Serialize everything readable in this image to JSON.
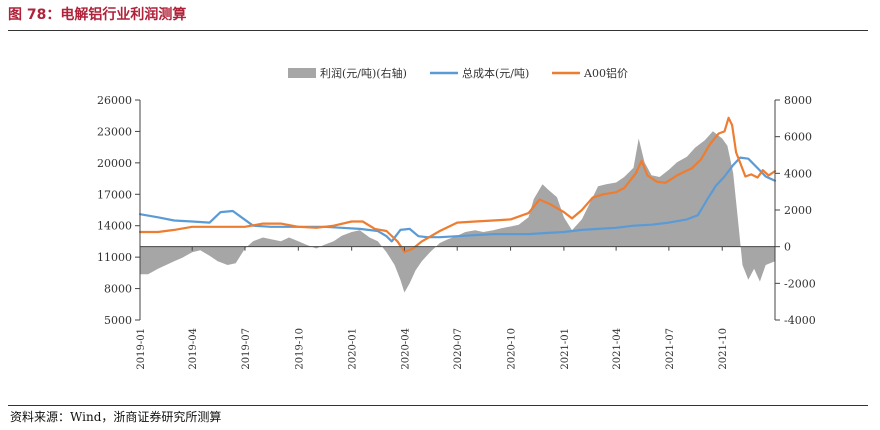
{
  "figure": {
    "title": "图 78：电解铝行业利润测算",
    "source": "资料来源：Wind，浙商证券研究所测算"
  },
  "colors": {
    "profit": "#a6a6a6",
    "cost": "#5b9bd5",
    "price": "#ed7d31",
    "title": "#b0223a"
  },
  "chart_data": {
    "type": "line",
    "title": "",
    "xlabel": "",
    "ylabel": "",
    "x_ticks": [
      "2019-01",
      "2019-04",
      "2019-07",
      "2019-10",
      "2020-01",
      "2020-04",
      "2020-07",
      "2020-10",
      "2021-01",
      "2021-04",
      "2021-07",
      "2021-10"
    ],
    "x_range": [
      "2019-01-01",
      "2021-12-31"
    ],
    "y_left": {
      "min": 5000,
      "max": 26000,
      "ticks": [
        5000,
        8000,
        11000,
        14000,
        17000,
        20000,
        23000,
        26000
      ]
    },
    "y_right": {
      "min": -4000,
      "max": 8000,
      "ticks": [
        -4000,
        -2000,
        0,
        2000,
        4000,
        6000,
        8000
      ]
    },
    "legend": {
      "position": "top"
    },
    "grid": false,
    "series": [
      {
        "name": "利润(元/吨)(右轴)",
        "type": "area",
        "axis": "right",
        "points": [
          [
            "2019-01-01",
            -1500
          ],
          [
            "2019-01-15",
            -1500
          ],
          [
            "2019-02-01",
            -1200
          ],
          [
            "2019-02-15",
            -1000
          ],
          [
            "2019-03-01",
            -800
          ],
          [
            "2019-03-15",
            -600
          ],
          [
            "2019-04-01",
            -300
          ],
          [
            "2019-04-15",
            -200
          ],
          [
            "2019-05-01",
            -500
          ],
          [
            "2019-05-15",
            -800
          ],
          [
            "2019-06-01",
            -1000
          ],
          [
            "2019-06-15",
            -900
          ],
          [
            "2019-07-01",
            -100
          ],
          [
            "2019-07-15",
            300
          ],
          [
            "2019-08-01",
            500
          ],
          [
            "2019-08-15",
            400
          ],
          [
            "2019-09-01",
            300
          ],
          [
            "2019-09-15",
            500
          ],
          [
            "2019-10-01",
            300
          ],
          [
            "2019-10-15",
            100
          ],
          [
            "2019-11-01",
            -100
          ],
          [
            "2019-11-15",
            100
          ],
          [
            "2019-12-01",
            300
          ],
          [
            "2019-12-15",
            600
          ],
          [
            "2020-01-01",
            800
          ],
          [
            "2020-01-15",
            900
          ],
          [
            "2020-02-01",
            500
          ],
          [
            "2020-02-15",
            300
          ],
          [
            "2020-03-01",
            -300
          ],
          [
            "2020-03-15",
            -1000
          ],
          [
            "2020-03-25",
            -1800
          ],
          [
            "2020-04-01",
            -2500
          ],
          [
            "2020-04-10",
            -2000
          ],
          [
            "2020-04-20",
            -1300
          ],
          [
            "2020-05-01",
            -800
          ],
          [
            "2020-05-15",
            -300
          ],
          [
            "2020-06-01",
            200
          ],
          [
            "2020-06-15",
            400
          ],
          [
            "2020-07-01",
            600
          ],
          [
            "2020-07-15",
            800
          ],
          [
            "2020-08-01",
            900
          ],
          [
            "2020-08-15",
            800
          ],
          [
            "2020-09-01",
            900
          ],
          [
            "2020-09-15",
            1000
          ],
          [
            "2020-10-01",
            1100
          ],
          [
            "2020-10-15",
            1200
          ],
          [
            "2020-11-01",
            1600
          ],
          [
            "2020-11-10",
            2600
          ],
          [
            "2020-11-25",
            3400
          ],
          [
            "2020-12-05",
            3100
          ],
          [
            "2020-12-20",
            2700
          ],
          [
            "2021-01-01",
            1600
          ],
          [
            "2021-01-15",
            900
          ],
          [
            "2021-02-01",
            1500
          ],
          [
            "2021-02-15",
            2400
          ],
          [
            "2021-03-01",
            3300
          ],
          [
            "2021-03-15",
            3400
          ],
          [
            "2021-04-01",
            3500
          ],
          [
            "2021-04-15",
            3800
          ],
          [
            "2021-05-01",
            4300
          ],
          [
            "2021-05-10",
            5900
          ],
          [
            "2021-05-20",
            4600
          ],
          [
            "2021-06-01",
            3900
          ],
          [
            "2021-06-15",
            3800
          ],
          [
            "2021-07-01",
            4200
          ],
          [
            "2021-07-15",
            4600
          ],
          [
            "2021-08-01",
            4900
          ],
          [
            "2021-08-15",
            5400
          ],
          [
            "2021-09-01",
            5800
          ],
          [
            "2021-09-15",
            6300
          ],
          [
            "2021-10-01",
            5900
          ],
          [
            "2021-10-10",
            5500
          ],
          [
            "2021-10-20",
            4000
          ],
          [
            "2021-10-28",
            1500
          ],
          [
            "2021-11-05",
            -1000
          ],
          [
            "2021-11-15",
            -1800
          ],
          [
            "2021-11-25",
            -1200
          ],
          [
            "2021-12-05",
            -1900
          ],
          [
            "2021-12-15",
            -1000
          ],
          [
            "2021-12-31",
            -800
          ]
        ]
      },
      {
        "name": "总成本(元/吨)",
        "type": "line",
        "axis": "left",
        "points": [
          [
            "2019-01-01",
            15100
          ],
          [
            "2019-02-01",
            14800
          ],
          [
            "2019-03-01",
            14500
          ],
          [
            "2019-04-01",
            14400
          ],
          [
            "2019-05-01",
            14300
          ],
          [
            "2019-05-20",
            15300
          ],
          [
            "2019-06-10",
            15400
          ],
          [
            "2019-06-25",
            14800
          ],
          [
            "2019-07-15",
            14000
          ],
          [
            "2019-08-15",
            13900
          ],
          [
            "2019-09-15",
            13900
          ],
          [
            "2019-10-15",
            13900
          ],
          [
            "2019-11-15",
            13900
          ],
          [
            "2019-12-15",
            13800
          ],
          [
            "2020-01-15",
            13700
          ],
          [
            "2020-02-15",
            13500
          ],
          [
            "2020-03-01",
            13000
          ],
          [
            "2020-03-10",
            12500
          ],
          [
            "2020-03-25",
            13600
          ],
          [
            "2020-04-10",
            13700
          ],
          [
            "2020-04-25",
            13000
          ],
          [
            "2020-05-10",
            12900
          ],
          [
            "2020-06-01",
            12900
          ],
          [
            "2020-07-01",
            13000
          ],
          [
            "2020-08-01",
            13100
          ],
          [
            "2020-09-01",
            13200
          ],
          [
            "2020-10-01",
            13200
          ],
          [
            "2020-11-01",
            13200
          ],
          [
            "2020-12-01",
            13300
          ],
          [
            "2021-01-01",
            13400
          ],
          [
            "2021-02-01",
            13600
          ],
          [
            "2021-03-01",
            13700
          ],
          [
            "2021-04-01",
            13800
          ],
          [
            "2021-05-01",
            14000
          ],
          [
            "2021-06-01",
            14100
          ],
          [
            "2021-07-01",
            14300
          ],
          [
            "2021-08-01",
            14600
          ],
          [
            "2021-08-20",
            15000
          ],
          [
            "2021-09-05",
            16500
          ],
          [
            "2021-09-20",
            17800
          ],
          [
            "2021-10-05",
            18700
          ],
          [
            "2021-10-20",
            19800
          ],
          [
            "2021-11-01",
            20500
          ],
          [
            "2021-11-15",
            20400
          ],
          [
            "2021-12-01",
            19500
          ],
          [
            "2021-12-15",
            18700
          ],
          [
            "2021-12-31",
            18300
          ]
        ]
      },
      {
        "name": "A00铝价",
        "type": "line",
        "axis": "left",
        "points": [
          [
            "2019-01-01",
            13400
          ],
          [
            "2019-02-01",
            13400
          ],
          [
            "2019-03-01",
            13600
          ],
          [
            "2019-04-01",
            13900
          ],
          [
            "2019-05-01",
            13900
          ],
          [
            "2019-06-01",
            13900
          ],
          [
            "2019-07-01",
            13900
          ],
          [
            "2019-08-01",
            14200
          ],
          [
            "2019-09-01",
            14200
          ],
          [
            "2019-10-01",
            13900
          ],
          [
            "2019-11-01",
            13800
          ],
          [
            "2019-12-01",
            14000
          ],
          [
            "2020-01-01",
            14400
          ],
          [
            "2020-01-20",
            14400
          ],
          [
            "2020-02-10",
            13700
          ],
          [
            "2020-03-01",
            13500
          ],
          [
            "2020-03-20",
            12500
          ],
          [
            "2020-04-01",
            11500
          ],
          [
            "2020-04-15",
            11800
          ],
          [
            "2020-05-01",
            12500
          ],
          [
            "2020-06-01",
            13500
          ],
          [
            "2020-07-01",
            14300
          ],
          [
            "2020-08-01",
            14400
          ],
          [
            "2020-09-01",
            14500
          ],
          [
            "2020-10-01",
            14600
          ],
          [
            "2020-11-01",
            15200
          ],
          [
            "2020-11-20",
            16500
          ],
          [
            "2020-12-10",
            16000
          ],
          [
            "2021-01-01",
            15300
          ],
          [
            "2021-01-15",
            14700
          ],
          [
            "2021-02-01",
            15500
          ],
          [
            "2021-02-20",
            16700
          ],
          [
            "2021-03-10",
            17000
          ],
          [
            "2021-04-01",
            17200
          ],
          [
            "2021-04-15",
            17600
          ],
          [
            "2021-05-05",
            19000
          ],
          [
            "2021-05-15",
            20200
          ],
          [
            "2021-05-25",
            18800
          ],
          [
            "2021-06-10",
            18200
          ],
          [
            "2021-06-25",
            18100
          ],
          [
            "2021-07-15",
            18800
          ],
          [
            "2021-08-10",
            19500
          ],
          [
            "2021-08-25",
            20300
          ],
          [
            "2021-09-10",
            21800
          ],
          [
            "2021-09-25",
            22800
          ],
          [
            "2021-10-05",
            23000
          ],
          [
            "2021-10-12",
            24300
          ],
          [
            "2021-10-18",
            23600
          ],
          [
            "2021-10-25",
            21000
          ],
          [
            "2021-11-01",
            20000
          ],
          [
            "2021-11-10",
            18700
          ],
          [
            "2021-11-20",
            18900
          ],
          [
            "2021-12-01",
            18600
          ],
          [
            "2021-12-10",
            19300
          ],
          [
            "2021-12-20",
            18800
          ],
          [
            "2021-12-31",
            19200
          ]
        ]
      }
    ]
  }
}
